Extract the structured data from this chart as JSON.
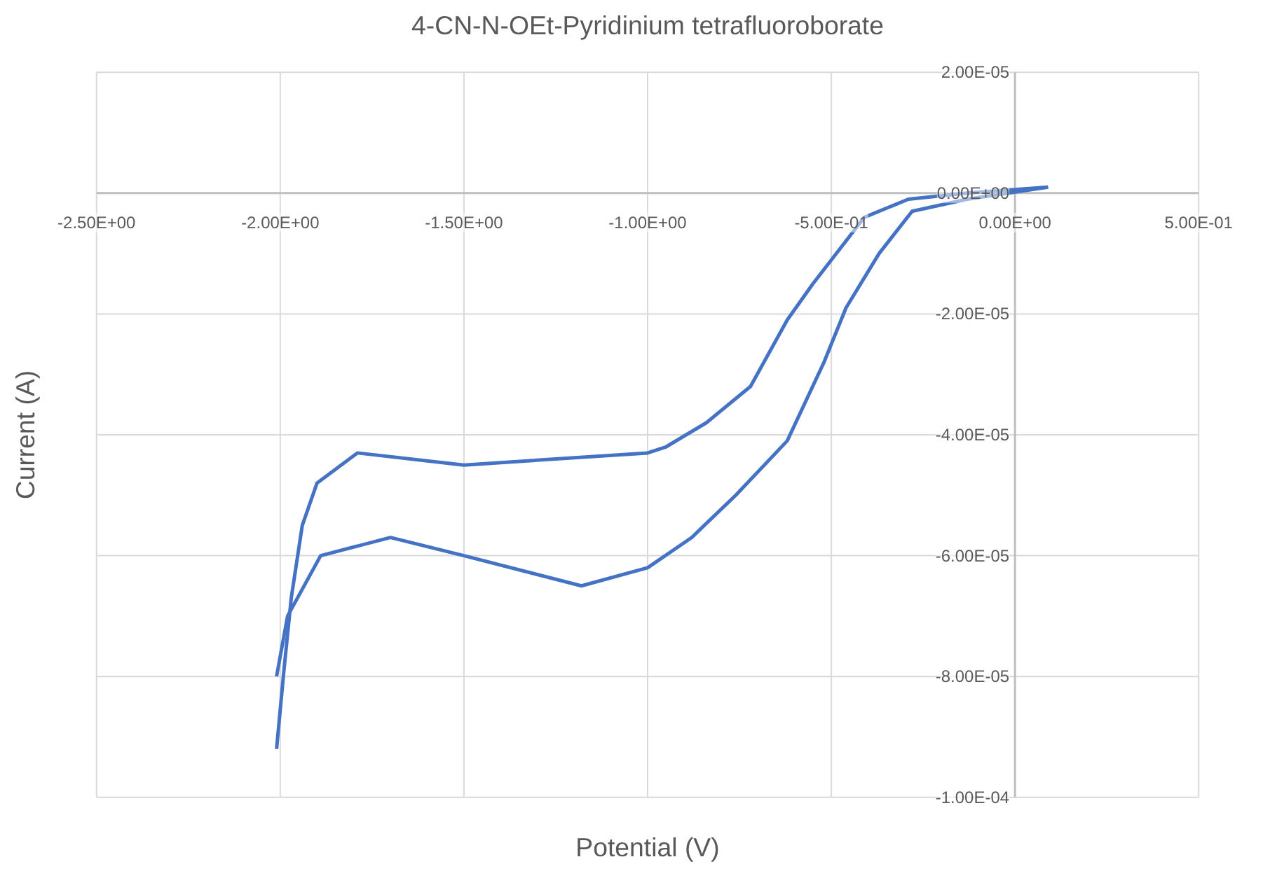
{
  "chart_data": {
    "type": "line",
    "title": "4-CN-N-OEt-Pyridinium tetrafluoroborate",
    "xlabel": "Potential (V)",
    "ylabel": "Current (A)",
    "series": [
      {
        "color": "#4472c4",
        "x": [
          0.09,
          -0.13,
          -0.29,
          -0.41,
          -0.55,
          -0.62,
          -0.72,
          -0.84,
          -0.95,
          -1.0,
          -1.5,
          -1.79,
          -1.9,
          -1.94,
          -1.97,
          -1.99,
          -2.01
        ],
        "values": [
          1e-06,
          0,
          -1e-06,
          -4e-06,
          -1.5e-05,
          -2.1e-05,
          -3.2e-05,
          -3.8e-05,
          -4.2e-05,
          -4.3e-05,
          -4.5e-05,
          -4.3e-05,
          -4.8e-05,
          -5.5e-05,
          -6.7e-05,
          -7.9e-05,
          -9.2e-05
        ]
      },
      {
        "color": "#4472c4",
        "x": [
          -2.01,
          -1.98,
          -1.89,
          -1.7,
          -1.5,
          -1.18,
          -1.0,
          -0.88,
          -0.76,
          -0.62,
          -0.52,
          -0.46,
          -0.37,
          -0.28,
          -0.13,
          0.09
        ],
        "values": [
          -8e-05,
          -7e-05,
          -6e-05,
          -5.7e-05,
          -6e-05,
          -6.5e-05,
          -6.2e-05,
          -5.7e-05,
          -5e-05,
          -4.1e-05,
          -2.8e-05,
          -1.9e-05,
          -1e-05,
          -3e-06,
          -1e-06,
          1e-06
        ]
      }
    ],
    "xlim": [
      -2.5,
      0.5
    ],
    "ylim": [
      -0.0001,
      2e-05
    ],
    "xticks": [
      {
        "value": -2.5,
        "label": "-2.50E+00"
      },
      {
        "value": -2.0,
        "label": "-2.00E+00"
      },
      {
        "value": -1.5,
        "label": "-1.50E+00"
      },
      {
        "value": -1.0,
        "label": "-1.00E+00"
      },
      {
        "value": -0.5,
        "label": "-5.00E-01"
      },
      {
        "value": 0,
        "label": "0.00E+00"
      },
      {
        "value": 0.5,
        "label": "5.00E-01"
      }
    ],
    "yticks": [
      {
        "value": -0.0001,
        "label": "-1.00E-04"
      },
      {
        "value": -8e-05,
        "label": "-8.00E-05"
      },
      {
        "value": -6e-05,
        "label": "-6.00E-05"
      },
      {
        "value": -4e-05,
        "label": "-4.00E-05"
      },
      {
        "value": -2e-05,
        "label": "-2.00E-05"
      },
      {
        "value": 0,
        "label": "0.00E+00"
      },
      {
        "value": 2e-05,
        "label": "2.00E-05"
      }
    ],
    "grid": true,
    "line_style": "solid",
    "marker": "none"
  }
}
